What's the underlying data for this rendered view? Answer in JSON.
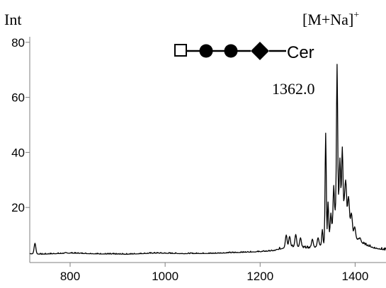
{
  "labels": {
    "y_axis": "Int",
    "ion": "[M+Na]",
    "ion_charge": "+",
    "peak": "1362.0",
    "glycan_tail": "Cer"
  },
  "glycan_structure": {
    "symbols": [
      "open-square",
      "filled-circle",
      "filled-circle",
      "filled-diamond"
    ]
  },
  "chart_data": {
    "type": "line",
    "xlim": [
      715,
      1465
    ],
    "ylim": [
      0,
      82
    ],
    "x_ticks": [
      800,
      1000,
      1200,
      1400
    ],
    "y_ticks": [
      20,
      40,
      60,
      80
    ],
    "grid": false,
    "baseline": [
      [
        715,
        3.2
      ],
      [
        740,
        3.0
      ],
      [
        800,
        3.4
      ],
      [
        860,
        3.1
      ],
      [
        920,
        3.0
      ],
      [
        980,
        3.4
      ],
      [
        1040,
        3.2
      ],
      [
        1100,
        3.3
      ],
      [
        1150,
        3.6
      ],
      [
        1200,
        3.9
      ],
      [
        1230,
        4.3
      ],
      [
        1245,
        5.0
      ],
      [
        1260,
        5.8
      ],
      [
        1280,
        5.6
      ],
      [
        1300,
        5.2
      ],
      [
        1320,
        5.6
      ],
      [
        1335,
        7.0
      ],
      [
        1350,
        12.0
      ],
      [
        1362,
        22.0
      ],
      [
        1372,
        24.0
      ],
      [
        1385,
        16.0
      ],
      [
        1400,
        9.0
      ],
      [
        1420,
        6.5
      ],
      [
        1440,
        5.2
      ],
      [
        1465,
        4.5
      ]
    ],
    "peaks": [
      {
        "x": 726,
        "y": 7.0
      },
      {
        "x": 1255,
        "y": 10.0
      },
      {
        "x": 1262,
        "y": 9.5
      },
      {
        "x": 1275,
        "y": 10.2
      },
      {
        "x": 1285,
        "y": 9.0
      },
      {
        "x": 1310,
        "y": 8.5
      },
      {
        "x": 1322,
        "y": 9.0
      },
      {
        "x": 1331,
        "y": 12.0
      },
      {
        "x": 1338,
        "y": 47.0
      },
      {
        "x": 1343,
        "y": 22.0
      },
      {
        "x": 1349,
        "y": 18.0
      },
      {
        "x": 1355,
        "y": 28.0
      },
      {
        "x": 1362,
        "y": 72.0
      },
      {
        "x": 1368,
        "y": 38.0
      },
      {
        "x": 1373,
        "y": 42.0
      },
      {
        "x": 1380,
        "y": 30.0
      },
      {
        "x": 1386,
        "y": 24.0
      },
      {
        "x": 1392,
        "y": 18.0
      },
      {
        "x": 1399,
        "y": 13.0
      },
      {
        "x": 1410,
        "y": 9.0
      }
    ]
  }
}
